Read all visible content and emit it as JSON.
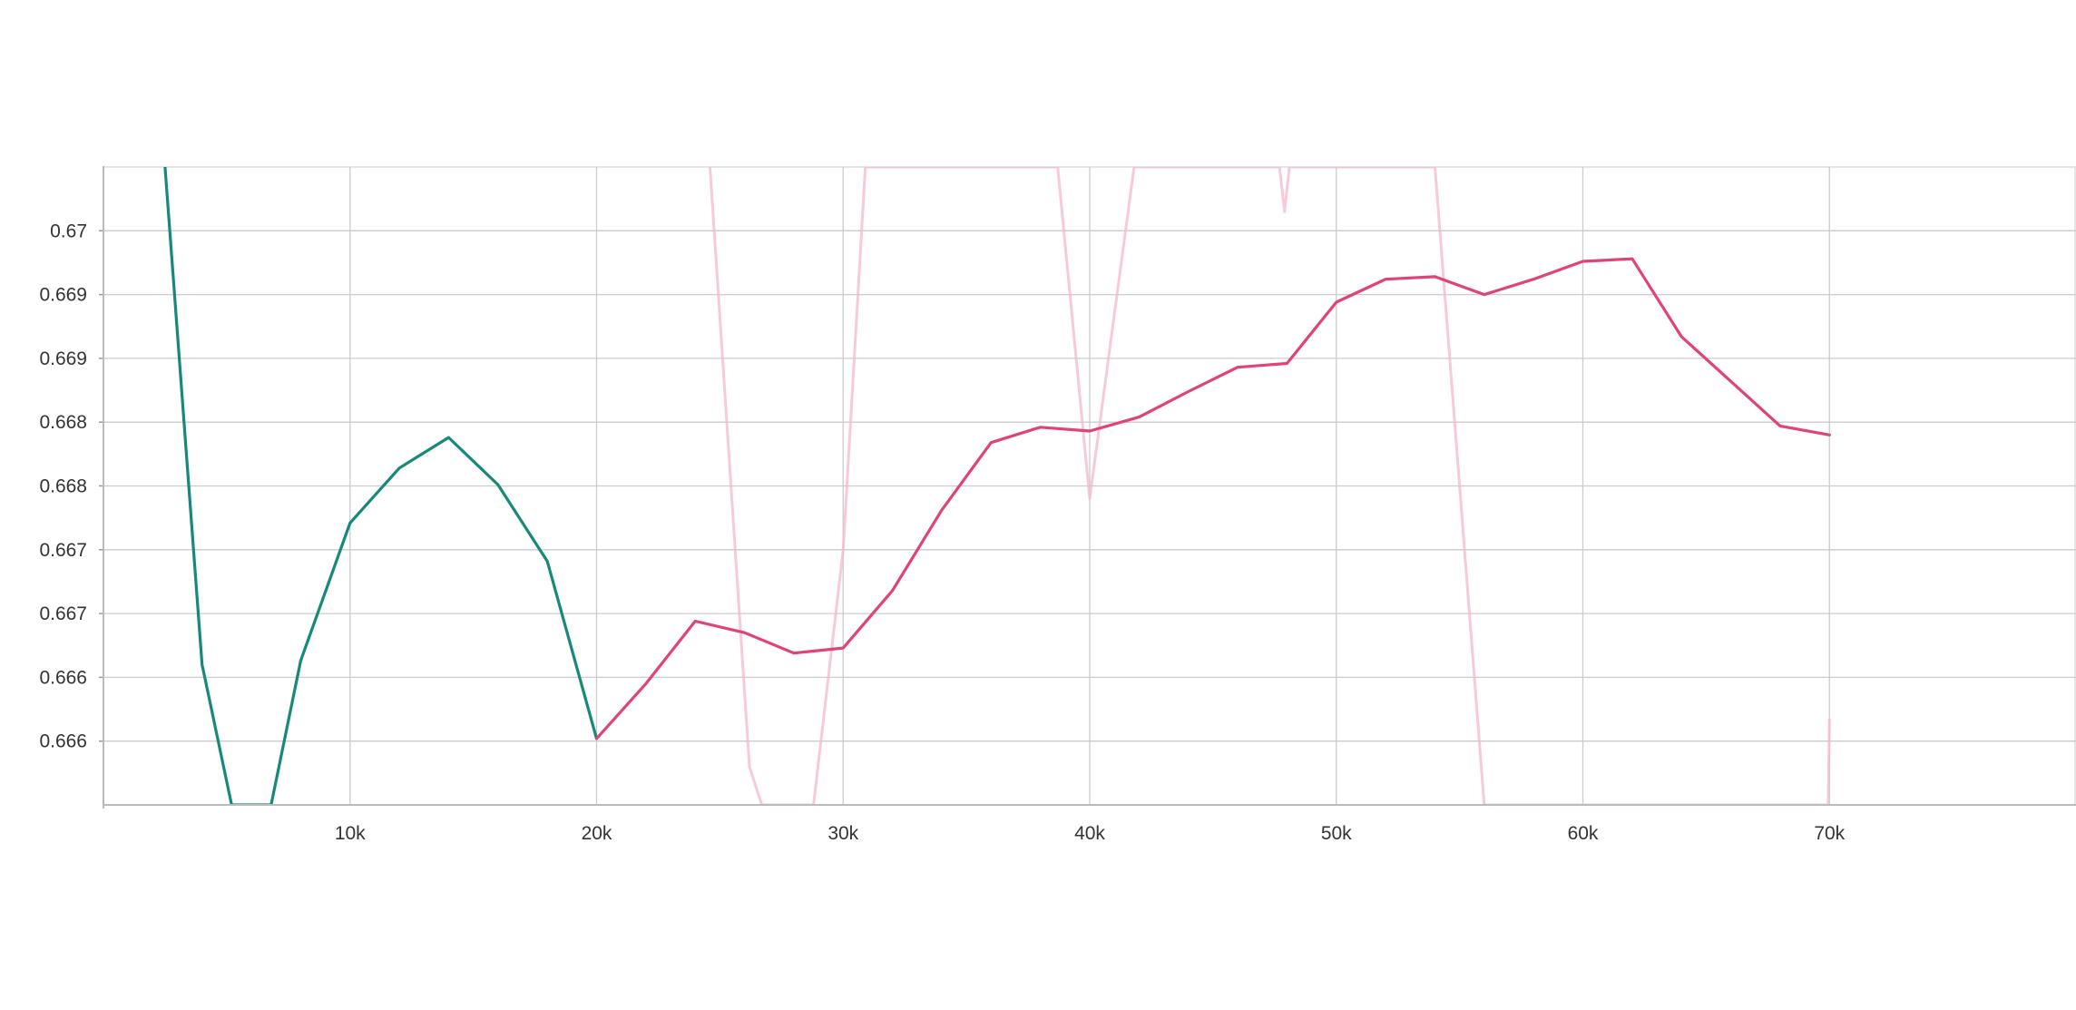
{
  "chart_data": {
    "type": "line",
    "title": "",
    "xlabel": "",
    "ylabel": "",
    "xlim": [
      0,
      80000
    ],
    "ylim": [
      0.66525,
      0.67025
    ],
    "grid": true,
    "x_ticks": [
      {
        "value": 10000,
        "label": "10k"
      },
      {
        "value": 20000,
        "label": "20k"
      },
      {
        "value": 30000,
        "label": "30k"
      },
      {
        "value": 40000,
        "label": "40k"
      },
      {
        "value": 50000,
        "label": "50k"
      },
      {
        "value": 60000,
        "label": "60k"
      },
      {
        "value": 70000,
        "label": "70k"
      }
    ],
    "y_ticks": [
      {
        "value": 0.66575,
        "label": "0.666"
      },
      {
        "value": 0.66625,
        "label": "0.666"
      },
      {
        "value": 0.66675,
        "label": "0.667"
      },
      {
        "value": 0.66725,
        "label": "0.667"
      },
      {
        "value": 0.66775,
        "label": "0.668"
      },
      {
        "value": 0.66825,
        "label": "0.668"
      },
      {
        "value": 0.66875,
        "label": "0.669"
      },
      {
        "value": 0.66925,
        "label": "0.669"
      },
      {
        "value": 0.66975,
        "label": "0.67"
      }
    ],
    "series": [
      {
        "color": "#16897a",
        "opacity": 1,
        "x": [
          2500,
          4000,
          5200,
          6800,
          8000,
          10000,
          12000,
          14000,
          16000,
          18000,
          20000
        ],
        "y": [
          0.67025,
          0.66635,
          0.66525,
          0.66525,
          0.66638,
          0.66746,
          0.66789,
          0.66813,
          0.66776,
          0.66716,
          0.66577
        ]
      },
      {
        "color": "#e0437a",
        "opacity": 1,
        "x": [
          20000,
          22000,
          24000,
          26000,
          28000,
          30000,
          32000,
          34000,
          36000,
          38000,
          40000,
          42000,
          44000,
          46000,
          48000,
          50000,
          52000,
          54000,
          56000,
          58000,
          60000,
          62000,
          64000,
          66000,
          68000,
          70000
        ],
        "y": [
          0.66577,
          0.6662,
          0.66669,
          0.6666,
          0.66644,
          0.66648,
          0.66693,
          0.66756,
          0.66809,
          0.66821,
          0.66818,
          0.66829,
          0.66849,
          0.66868,
          0.66871,
          0.66919,
          0.66937,
          0.66939,
          0.66925,
          0.66937,
          0.66951,
          0.66953,
          0.66892,
          0.66857,
          0.66822,
          0.66815
        ]
      },
      {
        "color": "#f4b8ca",
        "opacity": 0.75,
        "x": [
          24600,
          26200,
          26700,
          28800,
          30000,
          30900,
          38700,
          40000,
          41800,
          47700,
          47900,
          48100,
          54000,
          56000,
          69950,
          70000
        ],
        "y": [
          0.67025,
          0.66555,
          0.66525,
          0.66525,
          0.66725,
          0.67025,
          0.67025,
          0.66765,
          0.67025,
          0.67025,
          0.6699,
          0.67025,
          0.67025,
          0.66525,
          0.66525,
          0.66592
        ]
      }
    ]
  }
}
